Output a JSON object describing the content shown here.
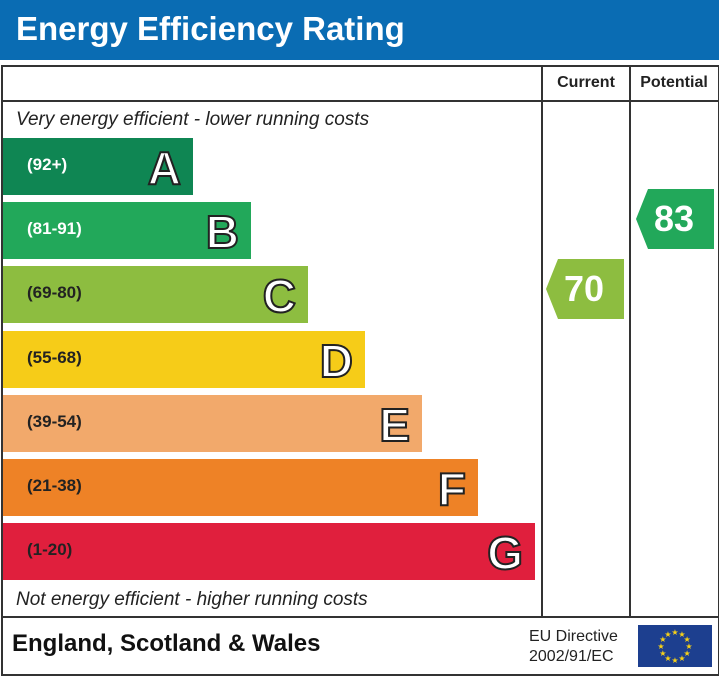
{
  "header": {
    "title": "Energy Efficiency Rating"
  },
  "columns": {
    "current": "Current",
    "potential": "Potential"
  },
  "notes": {
    "top": "Very energy efficient - lower running costs",
    "bottom": "Not energy efficient - higher running costs"
  },
  "footer": {
    "region": "England, Scotland & Wales",
    "directive_line1": "EU Directive",
    "directive_line2": "2002/91/EC"
  },
  "chart_data": {
    "type": "bar",
    "bands": [
      {
        "letter": "A",
        "range": "(92+)",
        "color": "#0f8653",
        "text_dark": false
      },
      {
        "letter": "B",
        "range": "(81-91)",
        "color": "#22a85a",
        "text_dark": false
      },
      {
        "letter": "C",
        "range": "(69-80)",
        "color": "#8dbd40",
        "text_dark": true
      },
      {
        "letter": "D",
        "range": "(55-68)",
        "color": "#f6cc18",
        "text_dark": true
      },
      {
        "letter": "E",
        "range": "(39-54)",
        "color": "#f2a96b",
        "text_dark": true
      },
      {
        "letter": "F",
        "range": "(21-38)",
        "color": "#ee8226",
        "text_dark": true
      },
      {
        "letter": "G",
        "range": "(1-20)",
        "color": "#e01f3d",
        "text_dark": true
      }
    ],
    "current": {
      "value": 70,
      "color": "#8dbd40"
    },
    "potential": {
      "value": 83,
      "color": "#22a85a"
    }
  }
}
